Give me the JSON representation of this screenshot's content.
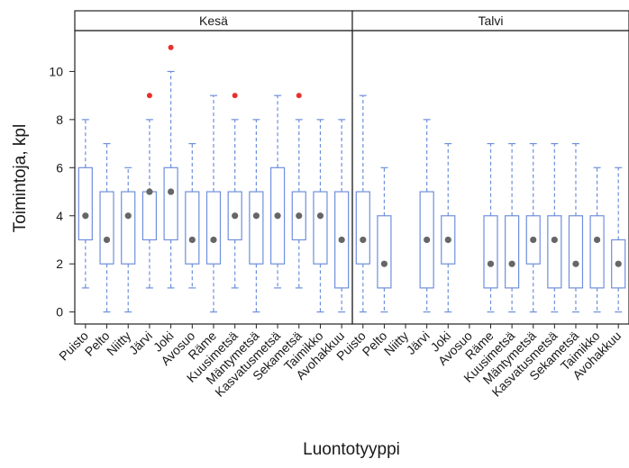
{
  "chart_data": {
    "type": "boxplot",
    "xlabel": "Luontotyyppi",
    "ylabel": "Toimintoja, kpl",
    "ylim": [
      -0.5,
      11.7
    ],
    "yticks": [
      0,
      2,
      4,
      6,
      8,
      10
    ],
    "categories": [
      "Puisto",
      "Pelto",
      "Niitty",
      "Järvi",
      "Joki",
      "Avosuo",
      "Räme",
      "Kuusimetsä",
      "Mäntymetsä",
      "Kasvatusmetsä",
      "Sekametsä",
      "Taimikko",
      "Avohakkuu"
    ],
    "colors": {
      "box": "#6f8fdc",
      "median": "#666666",
      "outlier": "#e8312c",
      "frame": "#222222"
    },
    "panels": [
      {
        "title": "Kesä",
        "boxes": [
          {
            "category": "Puisto",
            "whisker_low": 1,
            "q1": 3,
            "median": 4,
            "q3": 6,
            "whisker_high": 8,
            "outliers": []
          },
          {
            "category": "Pelto",
            "whisker_low": 0,
            "q1": 2,
            "median": 3,
            "q3": 5,
            "whisker_high": 7,
            "outliers": []
          },
          {
            "category": "Niitty",
            "whisker_low": 0,
            "q1": 2,
            "median": 4,
            "q3": 5,
            "whisker_high": 6,
            "outliers": []
          },
          {
            "category": "Järvi",
            "whisker_low": 1,
            "q1": 3,
            "median": 5,
            "q3": 5,
            "whisker_high": 8,
            "outliers": [
              9
            ]
          },
          {
            "category": "Joki",
            "whisker_low": 1,
            "q1": 3,
            "median": 5,
            "q3": 6,
            "whisker_high": 10,
            "outliers": [
              11
            ]
          },
          {
            "category": "Avosuo",
            "whisker_low": 1,
            "q1": 2,
            "median": 3,
            "q3": 5,
            "whisker_high": 7,
            "outliers": []
          },
          {
            "category": "Räme",
            "whisker_low": 0,
            "q1": 2,
            "median": 3,
            "q3": 5,
            "whisker_high": 9,
            "outliers": []
          },
          {
            "category": "Kuusimetsä",
            "whisker_low": 1,
            "q1": 3,
            "median": 4,
            "q3": 5,
            "whisker_high": 8,
            "outliers": [
              9
            ]
          },
          {
            "category": "Mäntymetsä",
            "whisker_low": 0,
            "q1": 2,
            "median": 4,
            "q3": 5,
            "whisker_high": 8,
            "outliers": []
          },
          {
            "category": "Kasvatusmetsä",
            "whisker_low": 1,
            "q1": 2,
            "median": 4,
            "q3": 6,
            "whisker_high": 9,
            "outliers": []
          },
          {
            "category": "Sekametsä",
            "whisker_low": 1,
            "q1": 3,
            "median": 4,
            "q3": 5,
            "whisker_high": 8,
            "outliers": [
              9
            ]
          },
          {
            "category": "Taimikko",
            "whisker_low": 0,
            "q1": 2,
            "median": 4,
            "q3": 5,
            "whisker_high": 8,
            "outliers": []
          },
          {
            "category": "Avohakkuu",
            "whisker_low": 0,
            "q1": 1,
            "median": 3,
            "q3": 5,
            "whisker_high": 8,
            "outliers": []
          }
        ]
      },
      {
        "title": "Talvi",
        "boxes": [
          {
            "category": "Puisto",
            "whisker_low": 0,
            "q1": 2,
            "median": 3,
            "q3": 5,
            "whisker_high": 9,
            "outliers": []
          },
          {
            "category": "Pelto",
            "whisker_low": 0,
            "q1": 1,
            "median": 2,
            "q3": 4,
            "whisker_high": 6,
            "outliers": []
          },
          {
            "category": "Niitty",
            "whisker_low": null,
            "q1": null,
            "median": null,
            "q3": null,
            "whisker_high": null,
            "outliers": []
          },
          {
            "category": "Järvi",
            "whisker_low": 0,
            "q1": 1,
            "median": 3,
            "q3": 5,
            "whisker_high": 8,
            "outliers": []
          },
          {
            "category": "Joki",
            "whisker_low": 0,
            "q1": 2,
            "median": 3,
            "q3": 4,
            "whisker_high": 7,
            "outliers": []
          },
          {
            "category": "Avosuo",
            "whisker_low": null,
            "q1": null,
            "median": null,
            "q3": null,
            "whisker_high": null,
            "outliers": []
          },
          {
            "category": "Räme",
            "whisker_low": 0,
            "q1": 1,
            "median": 2,
            "q3": 4,
            "whisker_high": 7,
            "outliers": []
          },
          {
            "category": "Kuusimetsä",
            "whisker_low": 0,
            "q1": 1,
            "median": 2,
            "q3": 4,
            "whisker_high": 7,
            "outliers": []
          },
          {
            "category": "Mäntymetsä",
            "whisker_low": 0,
            "q1": 2,
            "median": 3,
            "q3": 4,
            "whisker_high": 7,
            "outliers": []
          },
          {
            "category": "Kasvatusmetsä",
            "whisker_low": 0,
            "q1": 1,
            "median": 3,
            "q3": 4,
            "whisker_high": 7,
            "outliers": []
          },
          {
            "category": "Sekametsä",
            "whisker_low": 0,
            "q1": 1,
            "median": 2,
            "q3": 4,
            "whisker_high": 7,
            "outliers": []
          },
          {
            "category": "Taimikko",
            "whisker_low": 0,
            "q1": 1,
            "median": 3,
            "q3": 4,
            "whisker_high": 6,
            "outliers": []
          },
          {
            "category": "Avohakkuu",
            "whisker_low": 0,
            "q1": 1,
            "median": 2,
            "q3": 3,
            "whisker_high": 6,
            "outliers": []
          }
        ]
      }
    ]
  }
}
